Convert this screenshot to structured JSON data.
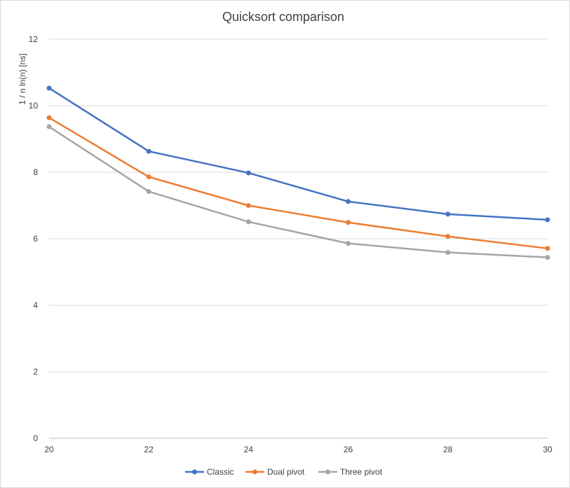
{
  "chart_data": {
    "type": "line",
    "title": "Quicksort comparison",
    "xlabel": "",
    "ylabel": "1 / n ln(n) [ns]",
    "x": [
      20,
      22,
      24,
      26,
      28,
      30
    ],
    "xlim": [
      20,
      30
    ],
    "ylim": [
      0,
      12
    ],
    "xticks": [
      "20",
      "22",
      "24",
      "26",
      "28",
      "30"
    ],
    "yticks": [
      "0",
      "2",
      "4",
      "6",
      "8",
      "10",
      "12"
    ],
    "grid": "horizontal",
    "legend": "bottom",
    "series": [
      {
        "name": "Classic",
        "color": "#4472c4",
        "values": [
          10.53,
          8.63,
          7.98,
          7.12,
          6.74,
          6.57
        ]
      },
      {
        "name": "Dual pivot",
        "color": "#ed7d31",
        "values": [
          9.64,
          7.86,
          7.0,
          6.49,
          6.07,
          5.71
        ]
      },
      {
        "name": "Three pivot",
        "color": "#a5a5a5",
        "values": [
          9.37,
          7.42,
          6.51,
          5.86,
          5.59,
          5.44
        ]
      }
    ]
  }
}
